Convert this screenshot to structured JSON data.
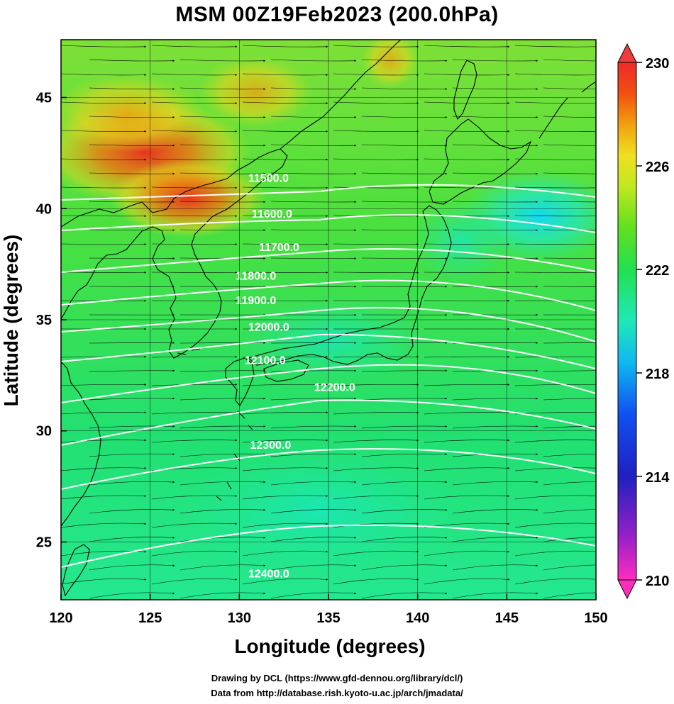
{
  "title": "MSM 00Z19Feb2023 (200.0hPa)",
  "xlabel": "Longitude (degrees)",
  "ylabel": "Latitude  (degrees)",
  "credits": [
    "Drawing by DCL (https://www.gfd-dennou.org/library/dcl/)",
    "Data from http://database.rish.kyoto-u.ac.jp/arch/jmadata/"
  ],
  "map": {
    "lon_range": [
      120,
      150
    ],
    "lat_range": [
      22.4,
      47.6
    ],
    "x_ticks": [
      120,
      125,
      130,
      135,
      140,
      145,
      150
    ],
    "x_tick_labels": [
      "120",
      "125",
      "130",
      "135",
      "140",
      "145",
      "150"
    ],
    "y_ticks": [
      25,
      30,
      35,
      40,
      45
    ],
    "y_tick_labels": [
      "25",
      "30",
      "35",
      "40",
      "45"
    ],
    "grid": true,
    "fill_field": "temperature (K)",
    "contour_field": "geopotential height",
    "vector_field": "wind"
  },
  "colorbar": {
    "range": [
      210,
      230
    ],
    "tick_values": [
      210,
      214,
      218,
      222,
      226,
      230
    ],
    "tick_labels": [
      "210",
      "214",
      "218",
      "222",
      "226",
      "230"
    ],
    "colors": [
      "#ff2dbe",
      "#9b20c8",
      "#2020c0",
      "#1050f0",
      "#10b8f0",
      "#20e8b8",
      "#22e050",
      "#60e020",
      "#c0e820",
      "#f0e020",
      "#f0a010",
      "#f05010",
      "#ee2b2b"
    ]
  },
  "contours": [
    {
      "label": "11500.0",
      "lon": 130.5,
      "lat": 41.2
    },
    {
      "label": "11600.0",
      "lon": 130.7,
      "lat": 39.6
    },
    {
      "label": "11700.0",
      "lon": 131.1,
      "lat": 38.1
    },
    {
      "label": "11800.0",
      "lon": 129.8,
      "lat": 36.8
    },
    {
      "label": "11900.0",
      "lon": 129.8,
      "lat": 35.7
    },
    {
      "label": "12000.0",
      "lon": 130.5,
      "lat": 34.5
    },
    {
      "label": "12100.0",
      "lon": 130.3,
      "lat": 33.0
    },
    {
      "label": "12200.0",
      "lon": 134.2,
      "lat": 31.8
    },
    {
      "label": "12300.0",
      "lon": 130.6,
      "lat": 29.2
    },
    {
      "label": "12400.0",
      "lon": 130.5,
      "lat": 23.4
    }
  ],
  "coastline_icon": "coastline-icon",
  "wind_icon": "arrow-icon"
}
